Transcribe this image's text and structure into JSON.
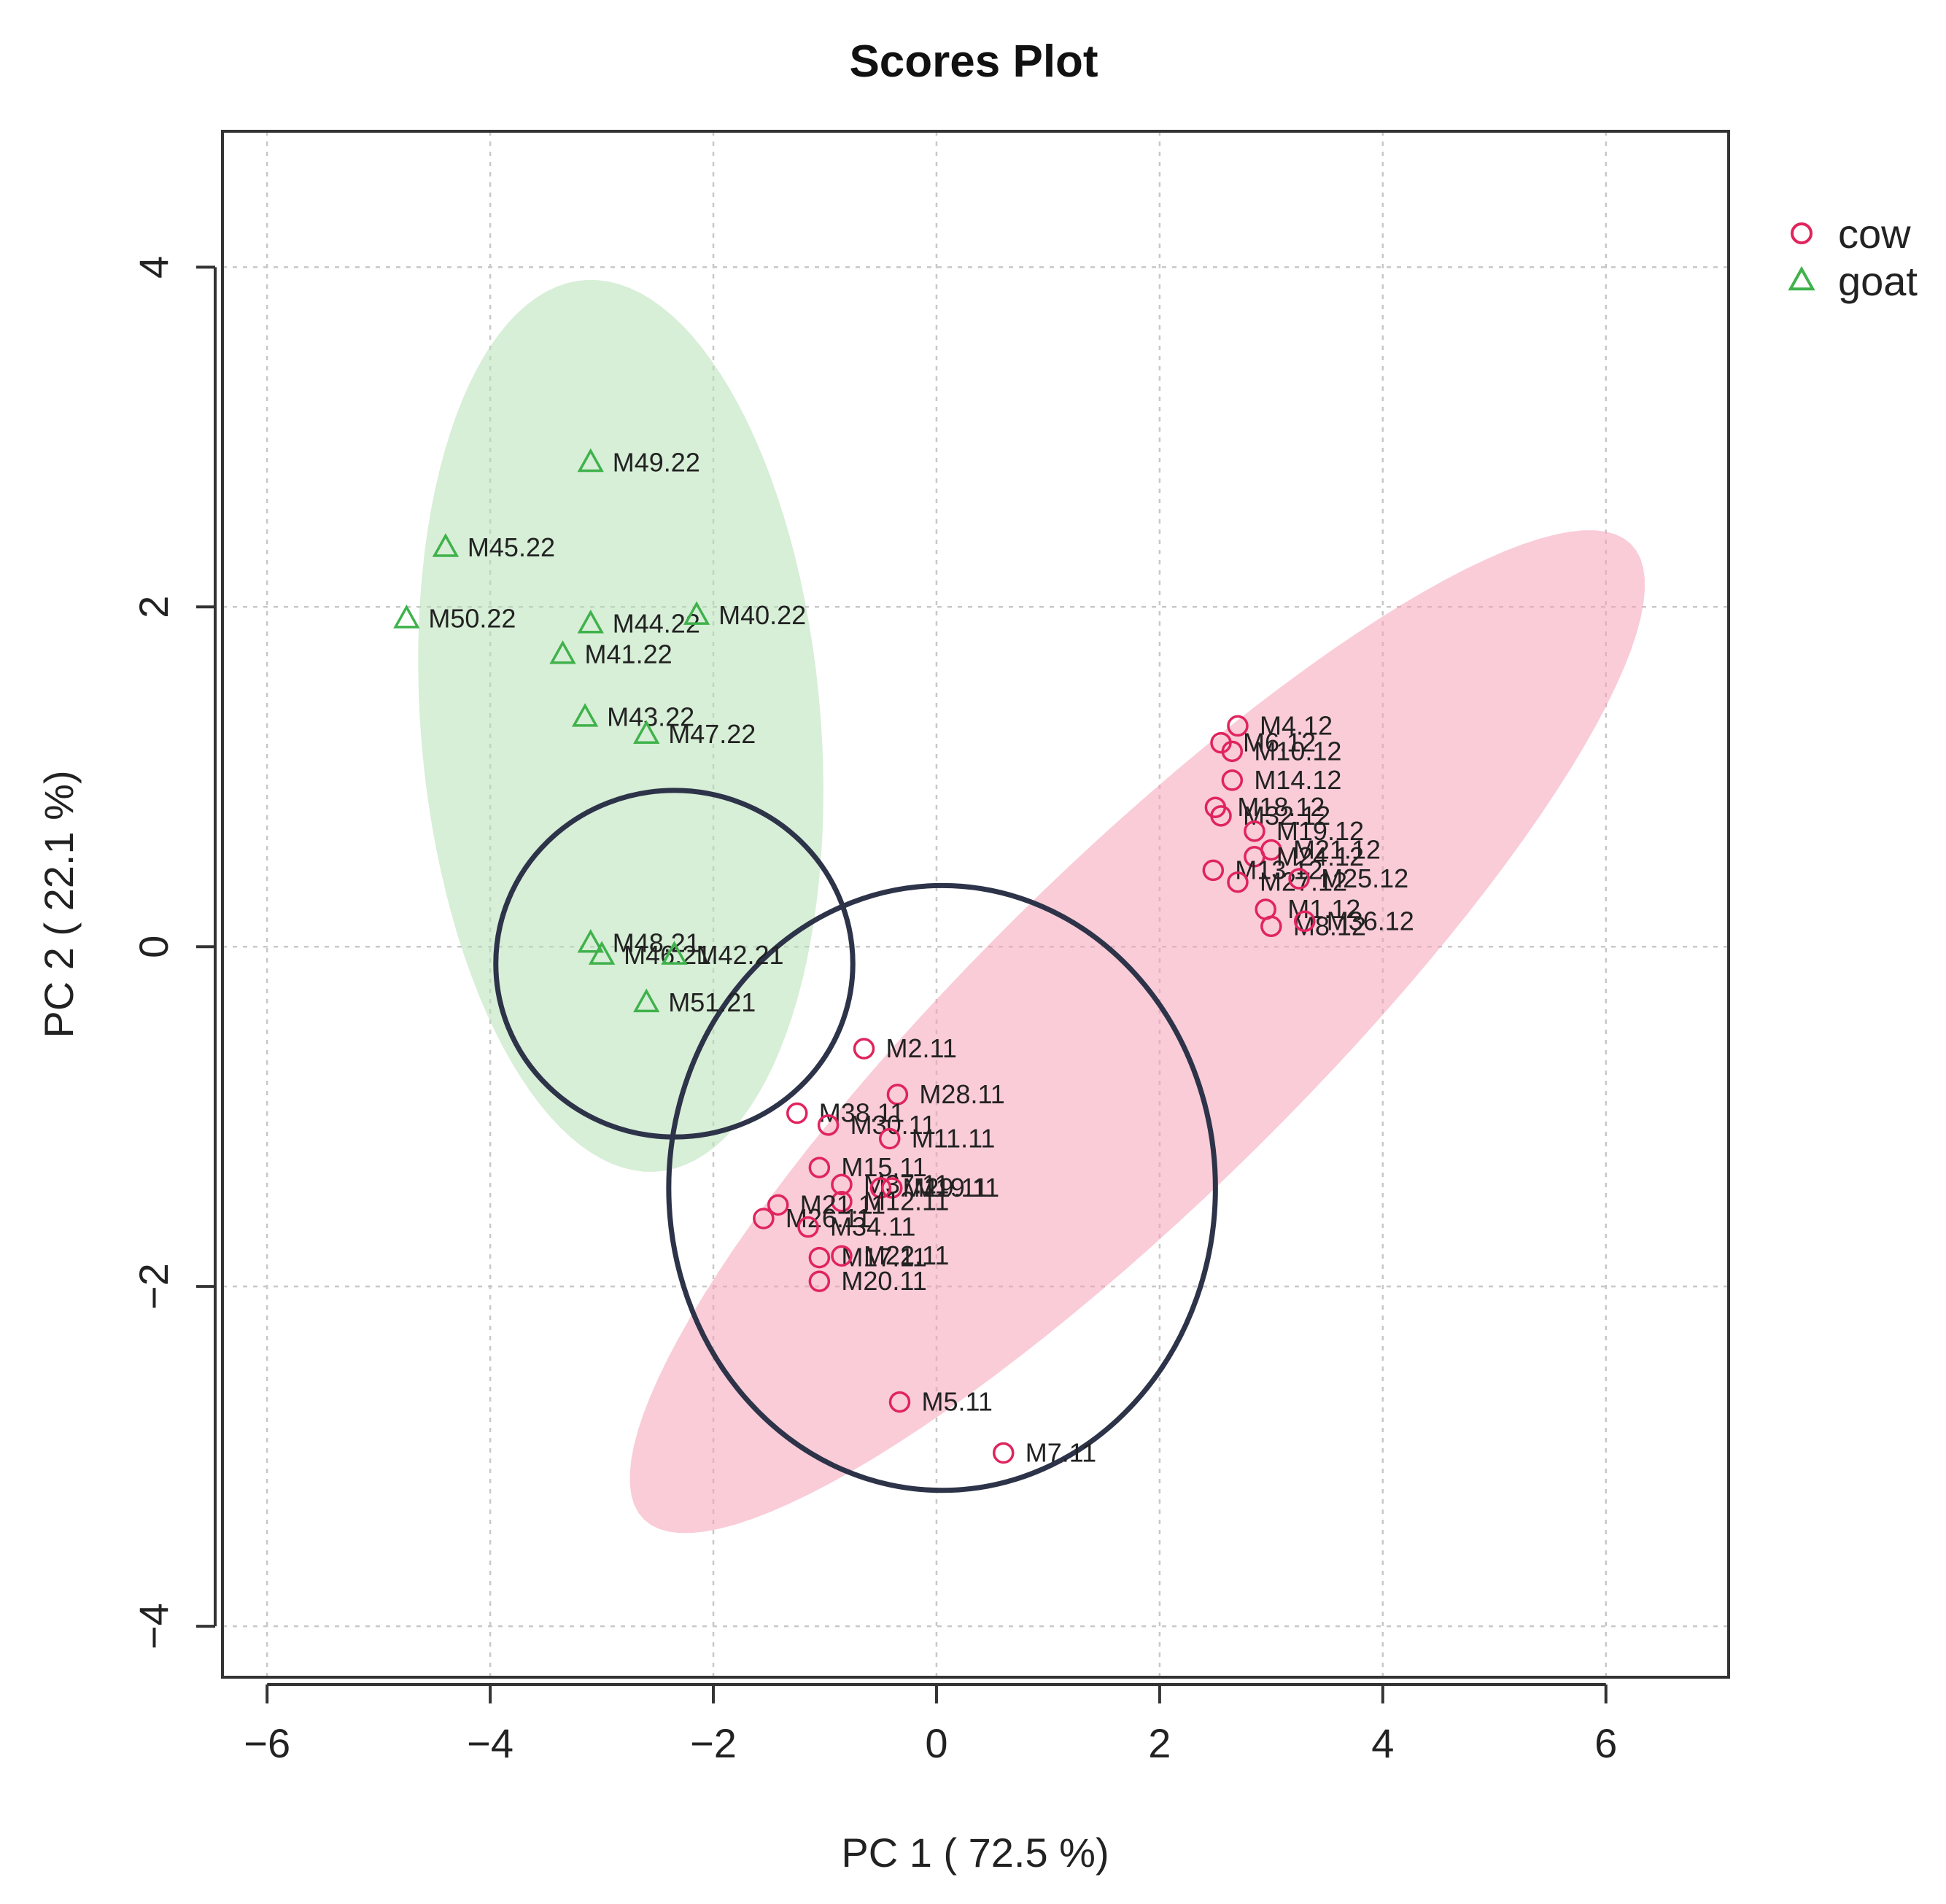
{
  "chart_data": {
    "type": "scatter",
    "title": "Scores Plot",
    "xlabel": "PC 1 ( 72.5 %)",
    "ylabel": "PC 2 ( 22.1 %)",
    "xlim": [
      -6.4,
      7.1
    ],
    "ylim": [
      -4.3,
      4.8
    ],
    "xticks": [
      -6,
      -4,
      -2,
      0,
      2,
      4,
      6
    ],
    "yticks": [
      -4,
      -2,
      0,
      2,
      4
    ],
    "xtick_labels": [
      "−6",
      "−4",
      "−2",
      "0",
      "2",
      "4",
      "6"
    ],
    "ytick_labels": [
      "−4",
      "−2",
      "0",
      "2",
      "4"
    ],
    "grid": true,
    "legend_position": "top-right, outside plot",
    "series": [
      {
        "name": "cow",
        "marker": "circle",
        "color": "#e0245e",
        "ellipse": {
          "cx": 1.8,
          "cy": -0.5,
          "rx": 5.3,
          "ry": 1.15,
          "angle_deg": 31.7,
          "fill": "#f4a3b8"
        },
        "points": [
          {
            "label": "M4.12",
            "x": 2.7,
            "y": 1.3
          },
          {
            "label": "M6.12",
            "x": 2.55,
            "y": 1.2
          },
          {
            "label": "M10.12",
            "x": 2.65,
            "y": 1.15
          },
          {
            "label": "M14.12",
            "x": 2.65,
            "y": 0.98
          },
          {
            "label": "M18.12",
            "x": 2.5,
            "y": 0.82
          },
          {
            "label": "M32.12",
            "x": 2.55,
            "y": 0.77
          },
          {
            "label": "M19.12",
            "x": 2.85,
            "y": 0.68
          },
          {
            "label": "M21.12",
            "x": 3.0,
            "y": 0.57
          },
          {
            "label": "M24.12",
            "x": 2.85,
            "y": 0.53
          },
          {
            "label": "M13.12",
            "x": 2.48,
            "y": 0.45
          },
          {
            "label": "M27.12",
            "x": 2.7,
            "y": 0.38
          },
          {
            "label": "M25.12",
            "x": 3.25,
            "y": 0.4
          },
          {
            "label": "M1.12",
            "x": 2.95,
            "y": 0.22
          },
          {
            "label": "M8.12",
            "x": 3.0,
            "y": 0.12
          },
          {
            "label": "M36.12",
            "x": 3.3,
            "y": 0.15
          },
          {
            "label": "M2.11",
            "x": -0.65,
            "y": -0.6
          },
          {
            "label": "M28.11",
            "x": -0.35,
            "y": -0.87
          },
          {
            "label": "M38.11",
            "x": -1.25,
            "y": -0.98
          },
          {
            "label": "M30.11",
            "x": -0.97,
            "y": -1.05
          },
          {
            "label": "M11.11",
            "x": -0.42,
            "y": -1.13
          },
          {
            "label": "M15.11",
            "x": -1.05,
            "y": -1.3
          },
          {
            "label": "M37.11",
            "x": -0.85,
            "y": -1.4
          },
          {
            "label": "M29.11",
            "x": -0.5,
            "y": -1.42
          },
          {
            "label": "M19.11",
            "x": -0.4,
            "y": -1.42
          },
          {
            "label": "M12.11",
            "x": -0.85,
            "y": -1.5
          },
          {
            "label": "M21.11",
            "x": -1.42,
            "y": -1.52
          },
          {
            "label": "M26.11",
            "x": -1.55,
            "y": -1.6
          },
          {
            "label": "M34.11",
            "x": -1.15,
            "y": -1.65
          },
          {
            "label": "M17.11",
            "x": -1.05,
            "y": -1.83
          },
          {
            "label": "M22.11",
            "x": -0.85,
            "y": -1.82
          },
          {
            "label": "M20.11",
            "x": -1.05,
            "y": -1.97
          },
          {
            "label": "M5.11",
            "x": -0.33,
            "y": -2.68
          },
          {
            "label": "M7.11",
            "x": 0.6,
            "y": -2.98
          }
        ]
      },
      {
        "name": "goat",
        "marker": "triangle",
        "color": "#3fb24b",
        "ellipse": {
          "cx": -2.83,
          "cy": 1.3,
          "rx": 2.65,
          "ry": 1.78,
          "angle_deg": -79.4,
          "fill": "#b7e0b7"
        },
        "points": [
          {
            "label": "M49.22",
            "x": -3.1,
            "y": 2.85
          },
          {
            "label": "M45.22",
            "x": -4.4,
            "y": 2.35
          },
          {
            "label": "M50.22",
            "x": -4.75,
            "y": 1.93
          },
          {
            "label": "M44.22",
            "x": -3.1,
            "y": 1.9
          },
          {
            "label": "M40.22",
            "x": -2.15,
            "y": 1.95
          },
          {
            "label": "M41.22",
            "x": -3.35,
            "y": 1.72
          },
          {
            "label": "M43.22",
            "x": -3.15,
            "y": 1.35
          },
          {
            "label": "M47.22",
            "x": -2.6,
            "y": 1.25
          },
          {
            "label": "M48.21",
            "x": -3.1,
            "y": 0.02
          },
          {
            "label": "M46.21",
            "x": -3.0,
            "y": -0.05
          },
          {
            "label": "M42.21",
            "x": -2.35,
            "y": -0.05
          },
          {
            "label": "M51.21",
            "x": -2.6,
            "y": -0.33
          }
        ]
      }
    ],
    "annotations": [
      {
        "shape": "circle-outline",
        "cx": -2.35,
        "cy": -0.1,
        "rx": 1.6,
        "ry": 1.02
      },
      {
        "shape": "circle-outline",
        "cx": 0.05,
        "cy": -1.42,
        "rx": 2.45,
        "ry": 1.78
      }
    ]
  }
}
